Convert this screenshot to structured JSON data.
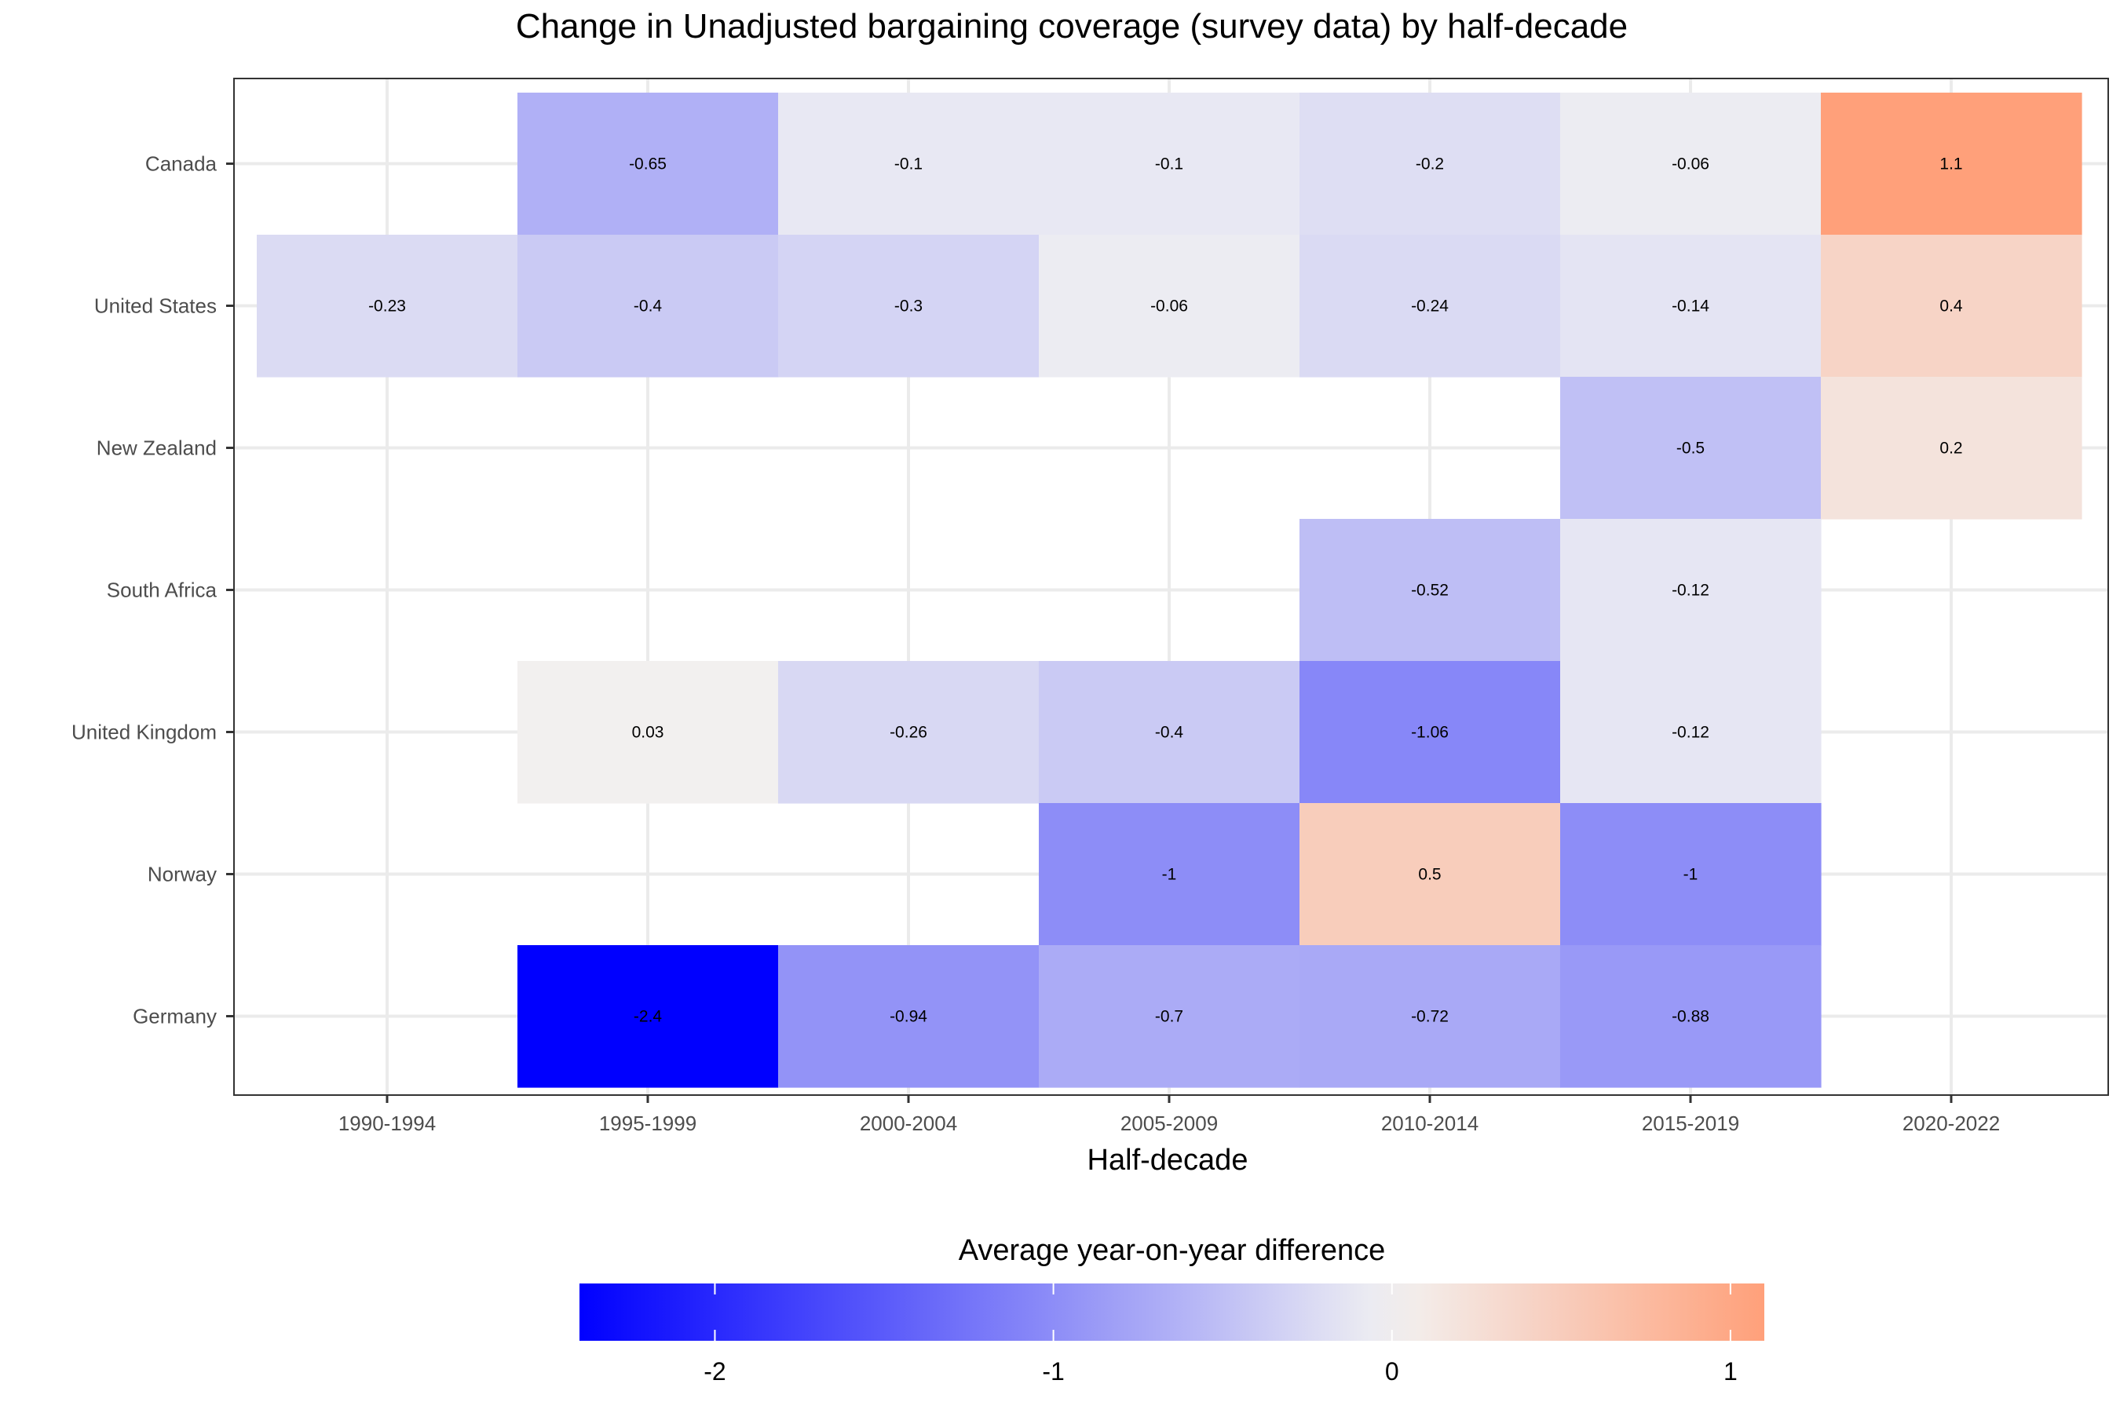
{
  "chart_data": {
    "type": "heatmap",
    "title": "Change in Unadjusted bargaining coverage (survey data) by half-decade",
    "xlabel": "Half-decade",
    "ylabel": "",
    "x": [
      "1990-1994",
      "1995-1999",
      "2000-2004",
      "2005-2009",
      "2010-2014",
      "2015-2019",
      "2020-2022"
    ],
    "y": [
      "Canada",
      "United States",
      "New Zealand",
      "South Africa",
      "United Kingdom",
      "Norway",
      "Germany"
    ],
    "values": [
      [
        null,
        -0.65,
        -0.1,
        -0.1,
        -0.2,
        -0.06,
        1.1
      ],
      [
        -0.23,
        -0.4,
        -0.3,
        -0.06,
        -0.24,
        -0.14,
        0.4
      ],
      [
        null,
        null,
        null,
        null,
        null,
        -0.5,
        0.2
      ],
      [
        null,
        null,
        null,
        null,
        -0.52,
        -0.12,
        null
      ],
      [
        null,
        0.03,
        -0.26,
        -0.4,
        -1.06,
        -0.12,
        null
      ],
      [
        null,
        null,
        null,
        -1,
        0.5,
        -1,
        null
      ],
      [
        null,
        -2.4,
        -0.94,
        -0.7,
        -0.72,
        -0.88,
        null
      ]
    ],
    "labels": [
      [
        null,
        "-0.65",
        "-0.1",
        "-0.1",
        "-0.2",
        "-0.06",
        "1.1"
      ],
      [
        "-0.23",
        "-0.4",
        "-0.3",
        "-0.06",
        "-0.24",
        "-0.14",
        "0.4"
      ],
      [
        null,
        null,
        null,
        null,
        null,
        "-0.5",
        "0.2"
      ],
      [
        null,
        null,
        null,
        null,
        "-0.52",
        "-0.12",
        null
      ],
      [
        null,
        "0.03",
        "-0.26",
        "-0.4",
        "-1.06",
        "-0.12",
        null
      ],
      [
        null,
        null,
        null,
        "-1",
        "0.5",
        "-1",
        null
      ],
      [
        null,
        "-2.4",
        "-0.94",
        "-0.7",
        "-0.72",
        "-0.88",
        null
      ]
    ],
    "legend": {
      "title": "Average year-on-year difference",
      "position": "bottom",
      "range": [
        -2.4,
        1.1
      ],
      "ticks": [
        -2,
        -1,
        0,
        1
      ],
      "tick_labels": [
        "-2",
        "-1",
        "0",
        "1"
      ]
    },
    "colors": {
      "low": "#0000ff",
      "mid": "#f2f2f2",
      "high": "#ffa07a",
      "midpoint": 0
    },
    "grid": true
  }
}
